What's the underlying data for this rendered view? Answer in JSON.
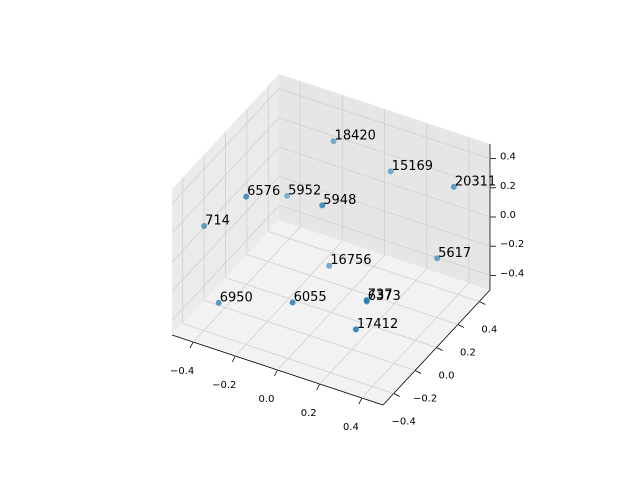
{
  "chart_data": {
    "type": "scatter3d",
    "color": "#1f77b4",
    "grid": true,
    "labels": [
      18420,
      15169,
      20311,
      6576,
      5952,
      5948,
      714,
      16756,
      5617,
      6950,
      6055,
      6373,
      737,
      17412
    ],
    "x": [
      -0.14,
      0.08,
      0.43,
      -0.25,
      -0.36,
      0.06,
      -0.5,
      -0.11,
      0.3,
      -0.38,
      -0.03,
      0.22,
      0.22,
      0.27
    ],
    "y": [
      0.3,
      0.4,
      0.3,
      -0.3,
      0.3,
      -0.2,
      -0.2,
      0.2,
      0.4,
      -0.3,
      -0.3,
      -0.1,
      -0.1,
      -0.3
    ],
    "z": [
      0.37,
      0.19,
      0.33,
      0.41,
      -0.11,
      0.42,
      0.01,
      -0.39,
      -0.3,
      -0.38,
      -0.21,
      -0.24,
      -0.23,
      -0.25
    ],
    "xlim": [
      -0.5,
      0.5
    ],
    "ylim": [
      -0.5,
      0.5
    ],
    "zlim": [
      -0.5,
      0.5
    ],
    "xticks": [
      {
        "value": -0.4,
        "label": "−0.4"
      },
      {
        "value": -0.2,
        "label": "−0.2"
      },
      {
        "value": 0,
        "label": "0.0"
      },
      0.2,
      0.4
    ],
    "yticks": [
      {
        "value": -0.4,
        "label": "−0.4"
      },
      {
        "value": -0.2,
        "label": "−0.2"
      },
      {
        "value": 0,
        "label": "0.0"
      },
      0.2,
      0.4
    ],
    "zticks": [
      {
        "value": -0.4,
        "label": "−0.4"
      },
      {
        "value": -0.2,
        "label": "−0.2"
      },
      {
        "value": 0,
        "label": "0.0"
      },
      0.2,
      0.4
    ]
  }
}
